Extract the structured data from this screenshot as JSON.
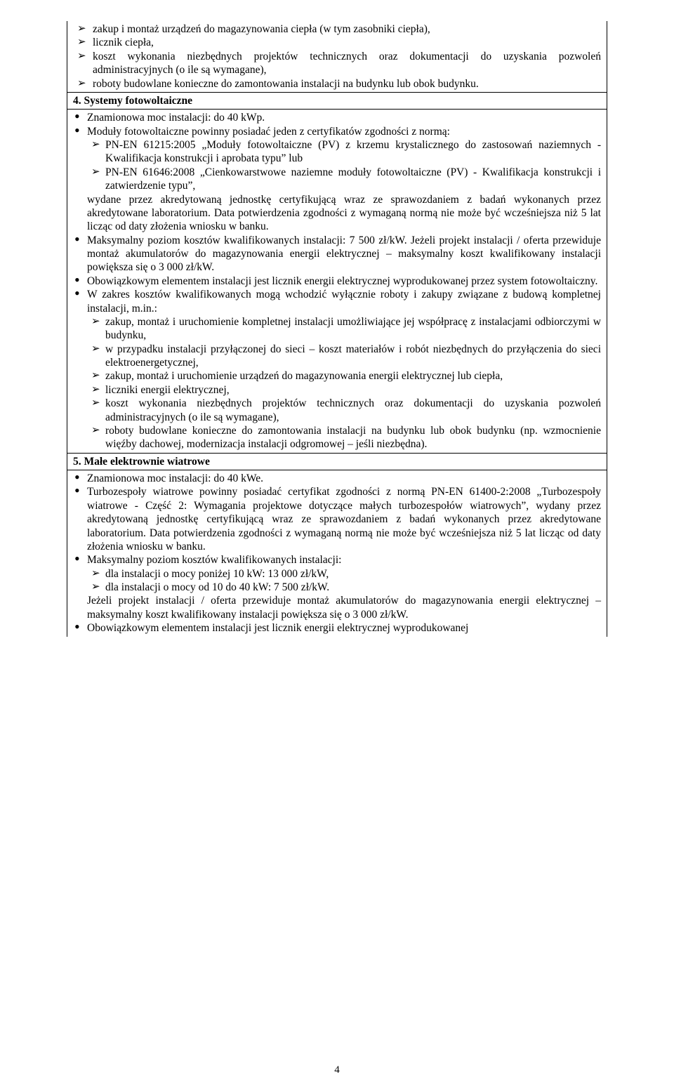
{
  "s1": {
    "a1": "zakup i montaż urządzeń do magazynowania ciepła (w tym zasobniki ciepła),",
    "a2": "licznik ciepła,",
    "a3": "koszt wykonania niezbędnych projektów technicznych oraz dokumentacji do uzyskania pozwoleń administracyjnych (o ile są wymagane),",
    "a4": "roboty budowlane konieczne do zamontowania instalacji na budynku lub obok budynku."
  },
  "h4": "4. Systemy fotowoltaiczne",
  "s4": {
    "d1": "Znamionowa moc instalacji: do 40 kWp.",
    "d2_intro": "Moduły fotowoltaiczne powinny posiadać jeden z certyfikatów zgodności z normą:",
    "d2_a1": "PN-EN 61215:2005 „Moduły fotowoltaiczne (PV) z krzemu krystalicznego do zastosowań naziemnych - Kwalifikacja konstrukcji i aprobata typu” lub",
    "d2_a2": "PN-EN 61646:2008 „Cienkowarstwowe naziemne moduły fotowoltaiczne (PV) - Kwalifikacja konstrukcji i zatwierdzenie typu”,",
    "d2_outro": "wydane przez akredytowaną jednostkę certyfikującą wraz ze sprawozdaniem z badań wykonanych przez akredytowane laboratorium. Data potwierdzenia zgodności z wymaganą normą nie może być wcześniejsza niż 5 lat licząc od daty złożenia wniosku w banku.",
    "d3": "Maksymalny poziom kosztów kwalifikowanych instalacji: 7 500 zł/kW. Jeżeli projekt instalacji / oferta przewiduje montaż akumulatorów do magazynowania energii elektrycznej – maksymalny koszt kwalifikowany instalacji powiększa się o 3 000 zł/kW.",
    "d4": "Obowiązkowym elementem instalacji jest licznik energii elektrycznej wyprodukowanej przez system fotowoltaiczny.",
    "d5_intro": "W zakres kosztów kwalifikowanych mogą wchodzić wyłącznie roboty i zakupy związane z budową kompletnej instalacji, m.in.:",
    "d5_a1": "zakup, montaż i uruchomienie kompletnej instalacji umożliwiające jej współpracę z instalacjami odbiorczymi w budynku,",
    "d5_a2": "w przypadku instalacji przyłączonej do sieci – koszt materiałów i robót niezbędnych do przyłączenia do sieci elektroenergetycznej,",
    "d5_a3": "zakup, montaż i uruchomienie urządzeń do magazynowania energii elektrycznej lub ciepła,",
    "d5_a4": "liczniki energii elektrycznej,",
    "d5_a5": "koszt wykonania niezbędnych projektów technicznych oraz dokumentacji do uzyskania pozwoleń administracyjnych (o ile są wymagane),",
    "d5_a6": "roboty budowlane konieczne do zamontowania instalacji na budynku lub obok budynku (np. wzmocnienie więźby dachowej, modernizacja instalacji odgromowej – jeśli niezbędna)."
  },
  "h5": "5. Małe elektrownie wiatrowe",
  "s5": {
    "d1": "Znamionowa moc instalacji: do 40 kWe.",
    "d2": "Turbozespoły wiatrowe powinny posiadać certyfikat zgodności z normą PN-EN 61400-2:2008 „Turbozespoły wiatrowe - Część 2: Wymagania projektowe dotyczące małych turbozespołów wiatrowych”, wydany przez akredytowaną jednostkę certyfikującą wraz ze sprawozdaniem z badań wykonanych przez akredytowane laboratorium. Data potwierdzenia zgodności z wymaganą normą nie może być wcześniejsza niż 5 lat licząc od daty złożenia wniosku w banku.",
    "d3_intro": "Maksymalny poziom kosztów kwalifikowanych instalacji:",
    "d3_a1": "dla instalacji o mocy poniżej 10 kW: 13 000 zł/kW,",
    "d3_a2": "dla instalacji o mocy od 10 do 40 kW: 7 500 zł/kW.",
    "d3_outro": "Jeżeli projekt instalacji / oferta przewiduje montaż akumulatorów do magazynowania energii elektrycznej – maksymalny koszt kwalifikowany instalacji powiększa się o 3 000 zł/kW.",
    "d4": "Obowiązkowym elementem instalacji jest licznik energii elektrycznej wyprodukowanej"
  },
  "pagenum": "4"
}
